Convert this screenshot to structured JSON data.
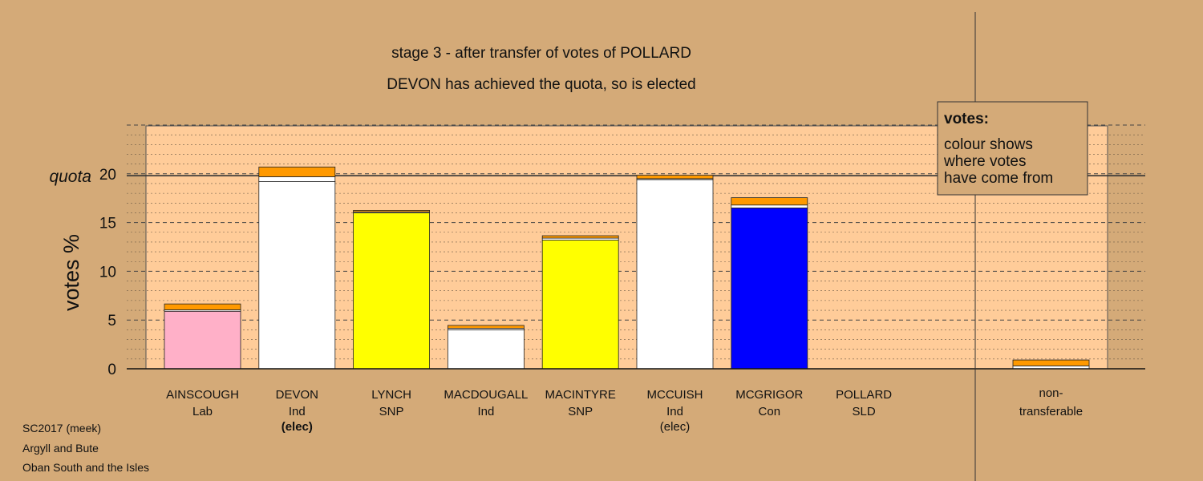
{
  "chart_data": {
    "type": "bar",
    "title": "stage 3 - after transfer of votes of POLLARD",
    "subtitle": "DEVON has achieved the quota, so is elected",
    "ylabel": "votes %",
    "quota_label": "quota",
    "quota": 19.8,
    "ylim": [
      0,
      25
    ],
    "yticks": [
      0,
      5,
      10,
      15,
      20
    ],
    "grid": true,
    "legend": {
      "placement": "top-right",
      "title": "votes:",
      "lines": [
        "colour shows",
        "where votes",
        "have come from"
      ]
    },
    "colors": {
      "Lab": "#ffb0c8",
      "Ind": "#ffffff",
      "SNP": "#ffff00",
      "Con": "#0000ff",
      "SLD": "#ff9900",
      "background": "#d4aa78",
      "plot_background": "#ffcc99"
    },
    "categories": [
      {
        "name": "AINSCOUGH",
        "party": "Lab",
        "status": "",
        "segments": [
          {
            "value": 5.9,
            "color": "#ffb0c8"
          },
          {
            "value": 0.15,
            "color": "#ffffff"
          },
          {
            "value": 0.6,
            "color": "#ff9900"
          }
        ]
      },
      {
        "name": "DEVON",
        "party": "Ind",
        "status": "(elec)",
        "segments": [
          {
            "value": 19.2,
            "color": "#ffffff"
          },
          {
            "value": 0.5,
            "color": "#ffffff"
          },
          {
            "value": 1.0,
            "color": "#ff9900"
          }
        ]
      },
      {
        "name": "LYNCH",
        "party": "SNP",
        "status": "",
        "segments": [
          {
            "value": 16.0,
            "color": "#ffff00"
          },
          {
            "value": 0.1,
            "color": "#ffffff"
          },
          {
            "value": 0.15,
            "color": "#ff9900"
          }
        ]
      },
      {
        "name": "MACDOUGALL",
        "party": "Ind",
        "status": "",
        "segments": [
          {
            "value": 4.0,
            "color": "#ffffff"
          },
          {
            "value": 0.15,
            "color": "#ffffff"
          },
          {
            "value": 0.3,
            "color": "#ff9900"
          }
        ]
      },
      {
        "name": "MACINTYRE",
        "party": "SNP",
        "status": "",
        "segments": [
          {
            "value": 13.2,
            "color": "#ffff00"
          },
          {
            "value": 0.2,
            "color": "#ffffff"
          },
          {
            "value": 0.25,
            "color": "#ff9900"
          }
        ]
      },
      {
        "name": "MCCUISH",
        "party": "Ind",
        "status": "(elec)",
        "segments": [
          {
            "value": 19.4,
            "color": "#ffffff"
          },
          {
            "value": 0.1,
            "color": "#ffffff"
          },
          {
            "value": 0.35,
            "color": "#ff9900"
          }
        ]
      },
      {
        "name": "MCGRIGOR",
        "party": "Con",
        "status": "",
        "segments": [
          {
            "value": 16.5,
            "color": "#0000ff"
          },
          {
            "value": 0.3,
            "color": "#ffffff"
          },
          {
            "value": 0.75,
            "color": "#ff9900"
          }
        ]
      },
      {
        "name": "POLLARD",
        "party": "SLD",
        "status": "",
        "segments": []
      }
    ],
    "non_transferable": {
      "label_line1": "non-",
      "label_line2": "transferable",
      "segments": [
        {
          "value": 0.3,
          "color": "#ffffff"
        },
        {
          "value": 0.6,
          "color": "#ff9900"
        }
      ]
    }
  },
  "footer": {
    "line1": "SC2017 (meek)",
    "line2": "Argyll and Bute",
    "line3": "Oban South and the Isles"
  }
}
